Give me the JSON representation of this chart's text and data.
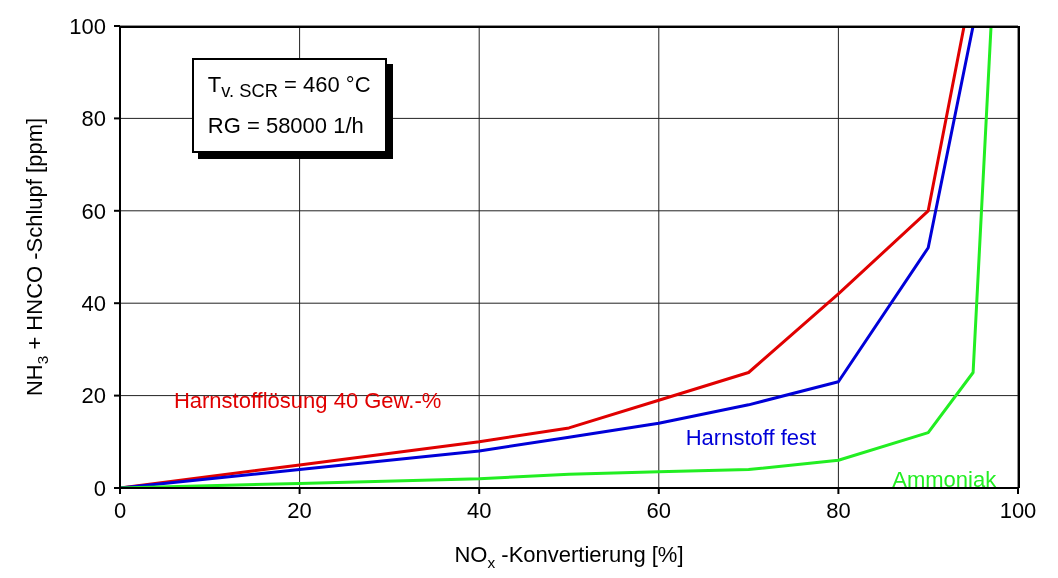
{
  "chart_data": {
    "type": "line",
    "xlabel": "NO$_{x}$-Konvertierung [%]",
    "ylabel": "NH$_{3}$ + HNCO -Schlupf [ppm]",
    "annotations": [
      "T$_{v. SCR}$ = 460 °C",
      "RG = 58000 1/h"
    ],
    "xlim": [
      0,
      100
    ],
    "xticks": [
      0,
      20,
      40,
      60,
      80,
      100
    ],
    "ylim": [
      0,
      100
    ],
    "yticks": [
      0,
      20,
      40,
      60,
      80,
      100
    ],
    "grid": true,
    "marker": "none",
    "line_style": "solid",
    "series": [
      {
        "name": "Harnstofflösung 40 Gew.-%",
        "color": "#e00000",
        "x": [
          0,
          20,
          40,
          50,
          60,
          70,
          80,
          90,
          94
        ],
        "values": [
          0,
          5,
          10,
          13,
          19,
          25,
          42,
          60,
          100
        ]
      },
      {
        "name": "Harnstoff fest",
        "color": "#0000d8",
        "x": [
          0,
          20,
          40,
          50,
          60,
          70,
          80,
          90,
          95
        ],
        "values": [
          0,
          4,
          8,
          11,
          14,
          18,
          23,
          52,
          100
        ]
      },
      {
        "name": "Ammoniak",
        "color": "#22ee22",
        "x": [
          0,
          20,
          40,
          50,
          60,
          70,
          80,
          90,
          95,
          97
        ],
        "values": [
          0,
          1,
          2,
          3,
          3.5,
          4,
          6,
          12,
          25,
          100
        ]
      }
    ]
  }
}
